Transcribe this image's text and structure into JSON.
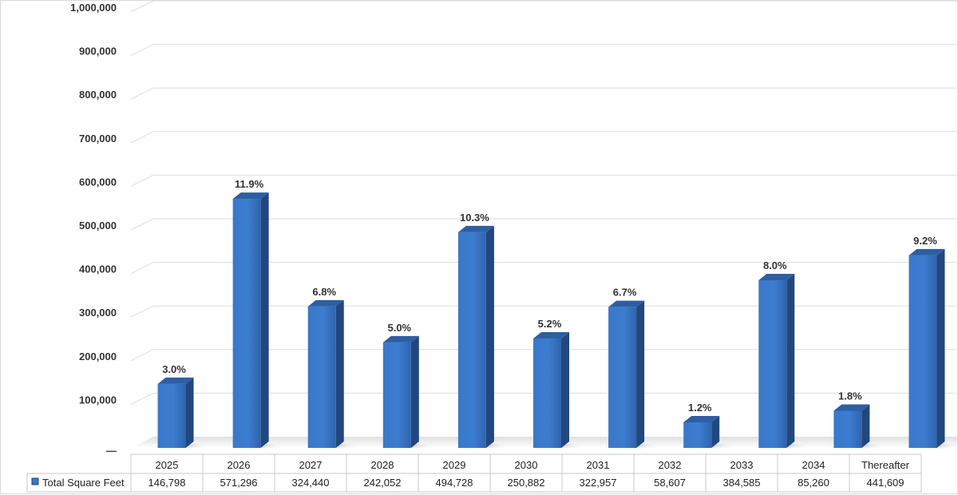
{
  "chart_data": {
    "type": "bar",
    "style": "3d-column",
    "categories": [
      "2025",
      "2026",
      "2027",
      "2028",
      "2029",
      "2030",
      "2031",
      "2032",
      "2033",
      "2034",
      "Thereafter"
    ],
    "series": [
      {
        "name": "Total Square Feet",
        "values": [
          146798,
          571296,
          324440,
          242052,
          494728,
          250882,
          322957,
          58607,
          384585,
          85260,
          441609
        ],
        "value_labels": [
          "146,798",
          "571,296",
          "324,440",
          "242,052",
          "494,728",
          "250,882",
          "322,957",
          "58,607",
          "384,585",
          "85,260",
          "441,609"
        ],
        "data_labels": [
          "3.0%",
          "11.9%",
          "6.8%",
          "5.0%",
          "10.3%",
          "5.2%",
          "6.7%",
          "1.2%",
          "8.0%",
          "1.8%",
          "9.2%"
        ],
        "color": "#3a76c4"
      }
    ],
    "ylim": [
      0,
      1000000
    ],
    "yticks": [
      0,
      100000,
      200000,
      300000,
      400000,
      500000,
      600000,
      700000,
      800000,
      900000,
      1000000
    ],
    "ytick_labels": [
      "—",
      "100,000",
      "200,000",
      "300,000",
      "400,000",
      "500,000",
      "600,000",
      "700,000",
      "800,000",
      "900,000",
      "1,000,000"
    ],
    "grid": true,
    "legend": "data-table-left",
    "data_table": true
  }
}
